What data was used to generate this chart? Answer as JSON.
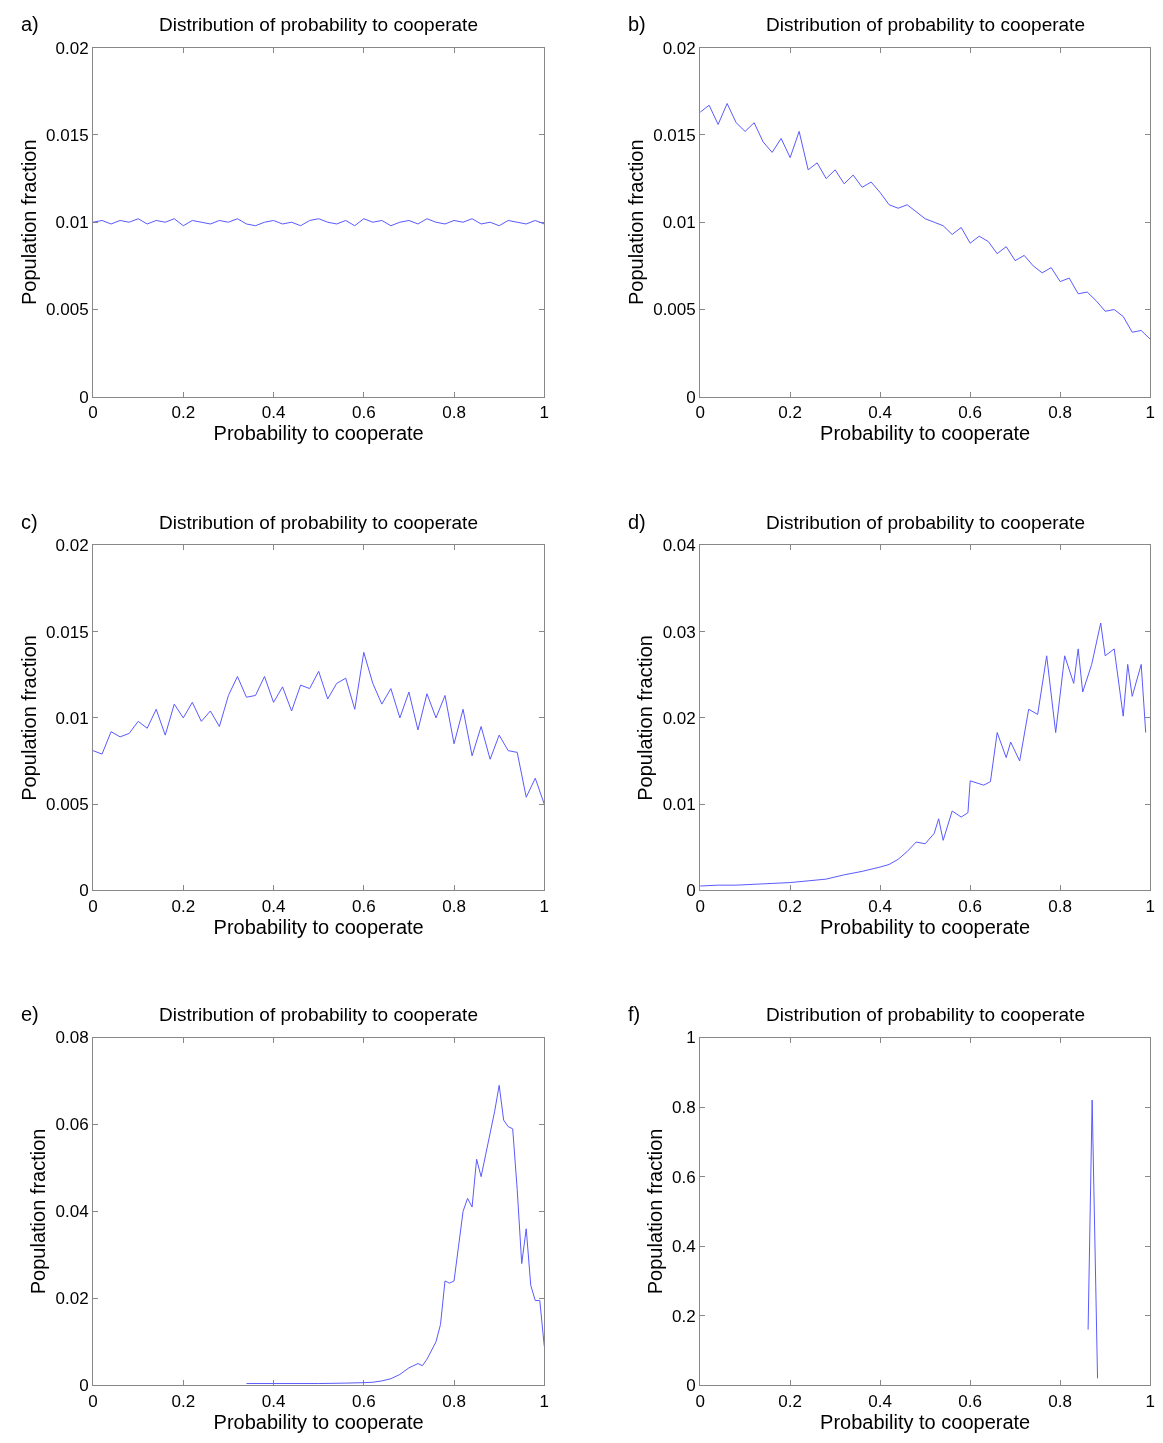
{
  "chart_data": [
    {
      "type": "line",
      "title": "Distribution of probability to cooperate",
      "xlabel": "Probability to cooperate",
      "ylabel": "Population fraction",
      "annotations": [
        "a)"
      ],
      "color": "#5a5aff",
      "marker": "none",
      "line_style": "solid",
      "xlim": [
        0,
        1
      ],
      "ylim": [
        0,
        0.02
      ],
      "xticks": [
        0,
        0.2,
        0.4,
        0.6,
        0.8,
        1
      ],
      "yticks": [
        0,
        0.005,
        0.01,
        0.015,
        0.02
      ],
      "x": [
        0,
        0.02,
        0.04,
        0.06,
        0.08,
        0.1,
        0.12,
        0.14,
        0.16,
        0.18,
        0.2,
        0.22,
        0.24,
        0.26,
        0.28,
        0.3,
        0.32,
        0.34,
        0.36,
        0.38,
        0.4,
        0.42,
        0.44,
        0.46,
        0.48,
        0.5,
        0.52,
        0.54,
        0.56,
        0.58,
        0.6,
        0.62,
        0.64,
        0.66,
        0.68,
        0.7,
        0.72,
        0.74,
        0.76,
        0.78,
        0.8,
        0.82,
        0.84,
        0.86,
        0.88,
        0.9,
        0.92,
        0.94,
        0.96,
        0.98,
        1
      ],
      "values": [
        0.01,
        0.0101,
        0.0099,
        0.0101,
        0.01,
        0.0102,
        0.0099,
        0.0101,
        0.01,
        0.0102,
        0.0098,
        0.0101,
        0.01,
        0.0099,
        0.0101,
        0.01,
        0.0102,
        0.0099,
        0.0098,
        0.01,
        0.0101,
        0.0099,
        0.01,
        0.0098,
        0.0101,
        0.0102,
        0.01,
        0.0099,
        0.0101,
        0.0098,
        0.0102,
        0.01,
        0.0101,
        0.0098,
        0.01,
        0.0101,
        0.0099,
        0.0102,
        0.01,
        0.0099,
        0.0101,
        0.01,
        0.0102,
        0.0099,
        0.01,
        0.0098,
        0.0101,
        0.01,
        0.0099,
        0.0101,
        0.0099
      ]
    },
    {
      "type": "line",
      "title": "Distribution of probability to cooperate",
      "xlabel": "Probability to cooperate",
      "ylabel": "Population fraction",
      "annotations": [
        "b)"
      ],
      "color": "#5a5aff",
      "marker": "none",
      "line_style": "solid",
      "xlim": [
        0,
        1
      ],
      "ylim": [
        0,
        0.02
      ],
      "xticks": [
        0,
        0.2,
        0.4,
        0.6,
        0.8,
        1
      ],
      "yticks": [
        0,
        0.005,
        0.01,
        0.015,
        0.02
      ],
      "x": [
        0,
        0.02,
        0.04,
        0.06,
        0.08,
        0.1,
        0.12,
        0.14,
        0.16,
        0.18,
        0.2,
        0.22,
        0.24,
        0.26,
        0.28,
        0.3,
        0.32,
        0.34,
        0.36,
        0.38,
        0.4,
        0.42,
        0.44,
        0.46,
        0.48,
        0.5,
        0.52,
        0.54,
        0.56,
        0.58,
        0.6,
        0.62,
        0.64,
        0.66,
        0.68,
        0.7,
        0.72,
        0.74,
        0.76,
        0.78,
        0.8,
        0.82,
        0.84,
        0.86,
        0.88,
        0.9,
        0.92,
        0.94,
        0.96,
        0.98,
        1
      ],
      "values": [
        0.0163,
        0.0167,
        0.0156,
        0.0168,
        0.0157,
        0.0152,
        0.0157,
        0.0146,
        0.014,
        0.0148,
        0.0137,
        0.0152,
        0.013,
        0.0134,
        0.0125,
        0.013,
        0.0122,
        0.0127,
        0.012,
        0.0123,
        0.0117,
        0.011,
        0.0108,
        0.011,
        0.0106,
        0.0102,
        0.01,
        0.0098,
        0.0093,
        0.0097,
        0.0088,
        0.0092,
        0.0089,
        0.0082,
        0.0086,
        0.0078,
        0.0081,
        0.0075,
        0.0071,
        0.0074,
        0.0066,
        0.0068,
        0.0059,
        0.006,
        0.0055,
        0.0049,
        0.005,
        0.0046,
        0.0037,
        0.0038,
        0.0033
      ]
    },
    {
      "type": "line",
      "title": "Distribution of probability to cooperate",
      "xlabel": "Probability to cooperate",
      "ylabel": "Population fraction",
      "annotations": [
        "c)"
      ],
      "color": "#5a5aff",
      "marker": "none",
      "line_style": "solid",
      "xlim": [
        0,
        1
      ],
      "ylim": [
        0,
        0.02
      ],
      "xticks": [
        0,
        0.2,
        0.4,
        0.6,
        0.8,
        1
      ],
      "yticks": [
        0,
        0.005,
        0.01,
        0.015,
        0.02
      ],
      "x": [
        0,
        0.02,
        0.04,
        0.06,
        0.08,
        0.1,
        0.12,
        0.14,
        0.16,
        0.18,
        0.2,
        0.22,
        0.24,
        0.26,
        0.28,
        0.3,
        0.32,
        0.34,
        0.36,
        0.38,
        0.4,
        0.42,
        0.44,
        0.46,
        0.48,
        0.5,
        0.52,
        0.54,
        0.56,
        0.58,
        0.6,
        0.62,
        0.64,
        0.66,
        0.68,
        0.7,
        0.72,
        0.74,
        0.76,
        0.78,
        0.8,
        0.82,
        0.84,
        0.86,
        0.88,
        0.9,
        0.92,
        0.94,
        0.96,
        0.98,
        1
      ],
      "values": [
        0.0081,
        0.0079,
        0.0092,
        0.0089,
        0.0091,
        0.0098,
        0.0094,
        0.0105,
        0.009,
        0.0108,
        0.01,
        0.0109,
        0.0098,
        0.0104,
        0.0095,
        0.0113,
        0.0124,
        0.0112,
        0.0113,
        0.0124,
        0.0109,
        0.0118,
        0.0104,
        0.0119,
        0.0117,
        0.0127,
        0.0111,
        0.012,
        0.0123,
        0.0105,
        0.0138,
        0.012,
        0.0108,
        0.0117,
        0.01,
        0.0115,
        0.0093,
        0.0114,
        0.01,
        0.0113,
        0.0085,
        0.0105,
        0.0078,
        0.0095,
        0.0076,
        0.009,
        0.0081,
        0.008,
        0.0054,
        0.0065,
        0.005
      ]
    },
    {
      "type": "line",
      "title": "Distribution of probability to cooperate",
      "xlabel": "Probability to cooperate",
      "ylabel": "Population fraction",
      "annotations": [
        "d)"
      ],
      "color": "#5a5aff",
      "marker": "none",
      "line_style": "solid",
      "xlim": [
        0,
        1
      ],
      "ylim": [
        0,
        0.04
      ],
      "xticks": [
        0,
        0.2,
        0.4,
        0.6,
        0.8,
        1
      ],
      "yticks": [
        0,
        0.01,
        0.02,
        0.03,
        0.04
      ],
      "x": [
        0,
        0.04,
        0.08,
        0.12,
        0.16,
        0.2,
        0.24,
        0.28,
        0.32,
        0.36,
        0.4,
        0.42,
        0.44,
        0.46,
        0.48,
        0.5,
        0.52,
        0.53,
        0.54,
        0.56,
        0.58,
        0.595,
        0.6,
        0.63,
        0.645,
        0.66,
        0.68,
        0.69,
        0.71,
        0.73,
        0.75,
        0.77,
        0.79,
        0.81,
        0.83,
        0.84,
        0.85,
        0.87,
        0.89,
        0.9,
        0.92,
        0.94,
        0.95,
        0.96,
        0.98,
        0.99
      ],
      "values": [
        0.0005,
        0.0006,
        0.0006,
        0.0007,
        0.0008,
        0.0009,
        0.0011,
        0.0013,
        0.0018,
        0.0022,
        0.0027,
        0.003,
        0.0036,
        0.0045,
        0.0056,
        0.0054,
        0.0066,
        0.0083,
        0.0058,
        0.0092,
        0.0085,
        0.009,
        0.0127,
        0.0122,
        0.0126,
        0.0183,
        0.0154,
        0.0172,
        0.015,
        0.021,
        0.0204,
        0.0272,
        0.0183,
        0.0272,
        0.024,
        0.028,
        0.023,
        0.0262,
        0.031,
        0.0272,
        0.028,
        0.0202,
        0.0262,
        0.0225,
        0.0262,
        0.0183
      ]
    },
    {
      "type": "line",
      "title": "Distribution of probability to cooperate",
      "xlabel": "Probability to cooperate",
      "ylabel": "Population fraction",
      "annotations": [
        "e)"
      ],
      "color": "#5a5aff",
      "marker": "none",
      "line_style": "solid",
      "xlim": [
        0,
        1
      ],
      "ylim": [
        0,
        0.08
      ],
      "xticks": [
        0,
        0.2,
        0.4,
        0.6,
        0.8,
        1
      ],
      "yticks": [
        0,
        0.02,
        0.04,
        0.06,
        0.08
      ],
      "x": [
        0.34,
        0.4,
        0.5,
        0.56,
        0.6,
        0.62,
        0.64,
        0.66,
        0.68,
        0.7,
        0.72,
        0.73,
        0.74,
        0.76,
        0.77,
        0.78,
        0.79,
        0.8,
        0.81,
        0.82,
        0.83,
        0.84,
        0.85,
        0.86,
        0.87,
        0.88,
        0.89,
        0.9,
        0.91,
        0.92,
        0.93,
        0.94,
        0.95,
        0.96,
        0.97,
        0.98,
        0.99,
        1
      ],
      "values": [
        0.0004,
        0.0004,
        0.0004,
        0.0005,
        0.0006,
        0.0007,
        0.001,
        0.0015,
        0.0025,
        0.004,
        0.005,
        0.0045,
        0.006,
        0.01,
        0.014,
        0.024,
        0.0235,
        0.024,
        0.032,
        0.04,
        0.043,
        0.041,
        0.052,
        0.048,
        0.053,
        0.058,
        0.063,
        0.069,
        0.061,
        0.0595,
        0.059,
        0.045,
        0.028,
        0.036,
        0.023,
        0.0195,
        0.0195,
        0.009
      ]
    },
    {
      "type": "line",
      "title": "Distribution of probability to cooperate",
      "xlabel": "Probability to cooperate",
      "ylabel": "Population fraction",
      "annotations": [
        "f)"
      ],
      "color": "#5a5aff",
      "marker": "none",
      "line_style": "solid",
      "xlim": [
        0,
        1
      ],
      "ylim": [
        0,
        1
      ],
      "xticks": [
        0,
        0.2,
        0.4,
        0.6,
        0.8,
        1
      ],
      "yticks": [
        0,
        0.2,
        0.4,
        0.6,
        0.8,
        1
      ],
      "x": [
        0.862,
        0.871,
        0.883
      ],
      "values": [
        0.16,
        0.82,
        0.02
      ]
    }
  ]
}
